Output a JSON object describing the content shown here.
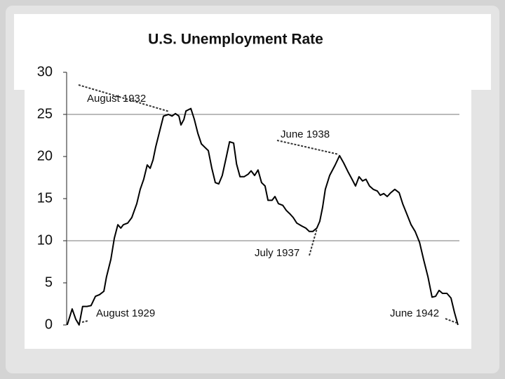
{
  "chart_data": {
    "type": "line",
    "title": "U.S. Unemployment Rate",
    "x": [
      1929.02,
      1929.19,
      1929.31,
      1929.43,
      1929.55,
      1929.7,
      1929.84,
      1929.99,
      1930.13,
      1930.28,
      1930.37,
      1930.52,
      1930.64,
      1930.76,
      1930.86,
      1930.95,
      1931.1,
      1931.24,
      1931.41,
      1931.53,
      1931.65,
      1931.77,
      1931.87,
      1931.97,
      1932.06,
      1932.21,
      1932.33,
      1932.5,
      1932.62,
      1932.74,
      1932.86,
      1932.93,
      1933.03,
      1933.1,
      1933.27,
      1933.39,
      1933.51,
      1933.63,
      1933.75,
      1933.87,
      1933.99,
      1934.11,
      1934.23,
      1934.35,
      1934.48,
      1934.6,
      1934.74,
      1934.84,
      1934.96,
      1935.1,
      1935.24,
      1935.34,
      1935.46,
      1935.58,
      1935.7,
      1935.82,
      1935.92,
      1936.06,
      1936.16,
      1936.28,
      1936.43,
      1936.55,
      1936.67,
      1936.79,
      1936.91,
      1937.08,
      1937.22,
      1937.34,
      1937.46,
      1937.6,
      1937.7,
      1937.8,
      1937.89,
      1938.04,
      1938.23,
      1938.38,
      1938.52,
      1938.67,
      1938.81,
      1938.93,
      1939.05,
      1939.17,
      1939.29,
      1939.41,
      1939.54,
      1939.68,
      1939.78,
      1939.9,
      1940.02,
      1940.14,
      1940.28,
      1940.43,
      1940.55,
      1940.69,
      1940.84,
      1940.98,
      1941.13,
      1941.27,
      1941.42,
      1941.56,
      1941.68,
      1941.8,
      1941.92,
      1942.07,
      1942.21,
      1942.33,
      1942.45
    ],
    "series": [
      {
        "color": "#000000",
        "values": [
          0,
          1.9,
          0.7,
          0,
          2.2,
          2.2,
          2.3,
          3.4,
          3.6,
          4.0,
          5.7,
          7.8,
          10.3,
          11.9,
          11.5,
          11.9,
          12.1,
          12.75,
          14.4,
          16.1,
          17.3,
          19.0,
          18.6,
          19.6,
          21.1,
          23.2,
          24.8,
          25.0,
          24.8,
          25.1,
          24.8,
          23.75,
          24.4,
          25.4,
          25.7,
          24.4,
          22.75,
          21.5,
          21.1,
          20.7,
          18.6,
          16.9,
          16.75,
          17.75,
          19.8,
          21.75,
          21.6,
          19.1,
          17.6,
          17.6,
          17.9,
          18.3,
          17.75,
          18.4,
          16.9,
          16.5,
          14.8,
          14.8,
          15.25,
          14.4,
          14.2,
          13.6,
          13.2,
          12.75,
          12.1,
          11.75,
          11.5,
          11.1,
          11.1,
          11.5,
          12.3,
          14.0,
          16.1,
          17.75,
          19.0,
          20.1,
          19.25,
          18.2,
          17.3,
          16.5,
          17.6,
          17.1,
          17.3,
          16.5,
          16.1,
          15.9,
          15.4,
          15.6,
          15.25,
          15.7,
          16.1,
          15.7,
          14.4,
          13.2,
          11.9,
          11.1,
          9.8,
          7.75,
          5.7,
          3.3,
          3.4,
          4.1,
          3.75,
          3.75,
          3.2,
          1.5,
          0
        ]
      }
    ],
    "xlim": [
      1929,
      1942.5
    ],
    "ylim": [
      0,
      30
    ],
    "yticks": [
      0,
      5,
      10,
      15,
      20,
      25,
      30
    ],
    "reference_lines": [
      10,
      25
    ],
    "annotations": [
      {
        "text": "August 1929",
        "x": 1929.6,
        "y": 0
      },
      {
        "text": "August 1932",
        "x": 1932.6,
        "y": 25
      },
      {
        "text": "July 1937",
        "x": 1937.5,
        "y": 11.1
      },
      {
        "text": "June 1938",
        "x": 1938.4,
        "y": 20
      },
      {
        "text": "June 1942",
        "x": 1942.4,
        "y": 0
      }
    ]
  }
}
